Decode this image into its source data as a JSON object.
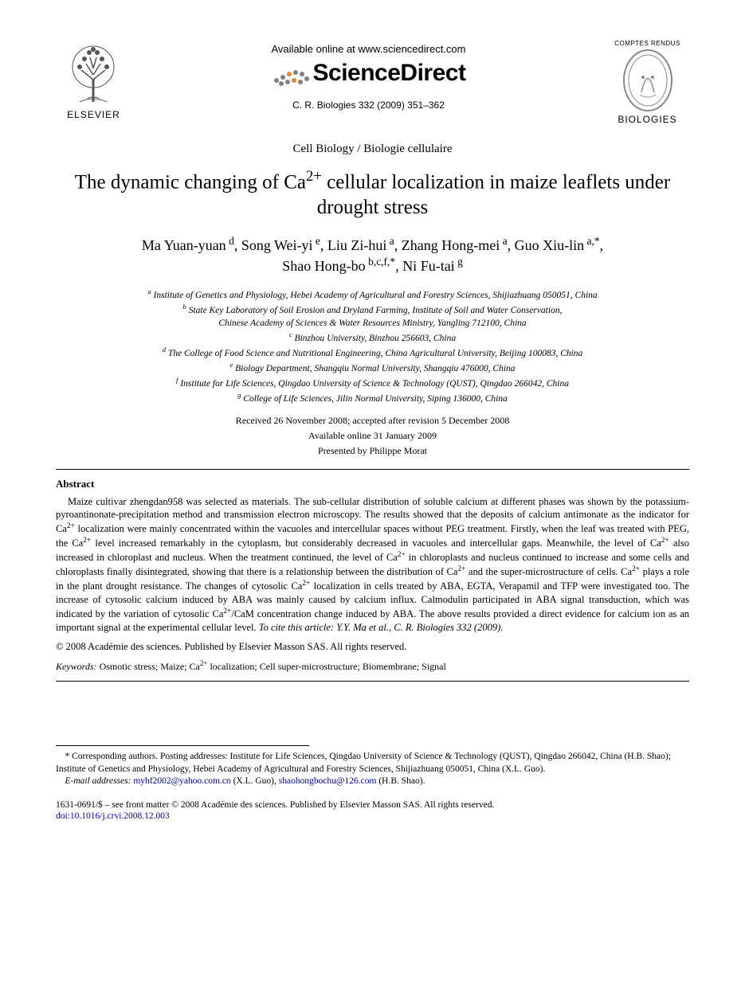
{
  "header": {
    "elsevier_label": "ELSEVIER",
    "available_online": "Available online at www.sciencedirect.com",
    "sd_brand": "ScienceDirect",
    "journal_ref": "C. R. Biologies 332 (2009) 351–362",
    "cr_top": "COMPTES RENDUS",
    "cr_bottom": "BIOLOGIES"
  },
  "section_label": "Cell Biology / Biologie cellulaire",
  "title_html": "The dynamic changing of Ca<sup>2+</sup> cellular localization in maize leaflets under drought stress",
  "authors_html": "Ma Yuan-yuan<sup> d</sup>, Song Wei-yi<sup> e</sup>, Liu Zi-hui<sup> a</sup>, Zhang Hong-mei<sup> a</sup>, Guo Xiu-lin<sup> a,*</sup>,<br>Shao Hong-bo<sup> b,c,f,*</sup>, Ni Fu-tai<sup> g</sup>",
  "affiliations": [
    "<sup>a</sup> Institute of Genetics and Physiology, Hebei Academy of Agricultural and Forestry Sciences, Shijiazhuang 050051, China",
    "<sup>b</sup> State Key Laboratory of Soil Erosion and Dryland Farming, Institute of Soil and Water Conservation,<br>Chinese Academy of Sciences &amp; Water Resources Ministry, Yangling 712100, China",
    "<sup>c</sup> Binzhou University, Binzhou 256603, China",
    "<sup>d</sup> The College of Food Science and Nutritional Engineering, China Agricultural University, Beijing 100083, China",
    "<sup>e</sup> Biology Department, Shangqiu Normal University, Shangqiu 476000, China",
    "<sup>f</sup> Institute for Life Sciences, Qingdao University of Science &amp; Technology (QUST), Qingdao 266042, China",
    "<sup>g</sup> College of Life Sciences, Jilin Normal University, Siping 136000, China"
  ],
  "dates": {
    "received": "Received 26 November 2008; accepted after revision 5 December 2008",
    "online": "Available online 31 January 2009",
    "presented": "Presented by Philippe Morat"
  },
  "abstract": {
    "heading": "Abstract",
    "body_html": "Maize cultivar zhengdan958 was selected as materials. The sub-cellular distribution of soluble calcium at different phases was shown by the potassium-pyroantinonate-precipitation method and transmission electron microscopy. The results showed that the deposits of calcium antimonate as the indicator for Ca<sup>2+</sup> localization were mainly concentrated within the vacuoles and intercellular spaces without PEG treatment. Firstly, when the leaf was treated with PEG, the Ca<sup>2+</sup> level increased remarkably in the cytoplasm, but considerably decreased in vacuoles and intercellular gaps. Meanwhile, the level of Ca<sup>2+</sup> also increased in chloroplast and nucleus. When the treatment continued, the level of Ca<sup>2+</sup> in chloroplasts and nucleus continued to increase and some cells and chloroplasts finally disintegrated, showing that there is a relationship between the distribution of Ca<sup>2+</sup> and the super-microstructure of cells. Ca<sup>2+</sup> plays a role in the plant drought resistance. The changes of cytosolic Ca<sup>2+</sup> localization in cells treated by ABA, EGTA, Verapamil and TFP were investigated too. The increase of cytosolic calcium induced by ABA was mainly caused by calcium influx. Calmodulin participated in ABA signal transduction, which was indicated by the variation of cytosolic Ca<sup>2+</sup>/CaM concentration change induced by ABA. The above results provided a direct evidence for calcium ion as an important signal at the experimental cellular level. <i>To cite this article: Y.Y. Ma et al., C. R. Biologies 332 (2009).</i>",
    "copyright": "© 2008 Académie des sciences. Published by Elsevier Masson SAS. All rights reserved."
  },
  "keywords": {
    "label": "Keywords:",
    "list_html": "Osmotic stress; Maize; Ca<sup>2+</sup> localization; Cell super-microstructure; Biomembrane; Signal"
  },
  "footnotes": {
    "corresponding": "* Corresponding authors. Posting addresses: Institute for Life Sciences, Qingdao University of Science & Technology (QUST), Qingdao 266042, China (H.B. Shao); Institute of Genetics and Physiology, Hebei Academy of Agricultural and Forestry Sciences, Shijiazhuang 050051, China (X.L. Guo).",
    "email_label": "E-mail addresses:",
    "email1": "myhf2002@yahoo.com.cn",
    "email1_who": " (X.L. Guo), ",
    "email2": "shaohongbochu@126.com",
    "email2_who": " (H.B. Shao)."
  },
  "bottom": {
    "front_matter": "1631-0691/$ – see front matter © 2008 Académie des sciences. Published by Elsevier Masson SAS. All rights reserved.",
    "doi": "doi:10.1016/j.crvi.2008.12.003"
  },
  "colors": {
    "text": "#000000",
    "link": "#0000cc",
    "sd_orange": "#f58220",
    "sd_grey": "#808080",
    "elsevier_grey": "#555555",
    "rule": "#000000",
    "background": "#ffffff"
  },
  "typography": {
    "body_family": "Times New Roman",
    "sans_family": "Arial",
    "title_size_pt": 19,
    "authors_size_pt": 13,
    "affil_size_pt": 9,
    "abstract_size_pt": 9.5,
    "footnote_size_pt": 8.5
  }
}
